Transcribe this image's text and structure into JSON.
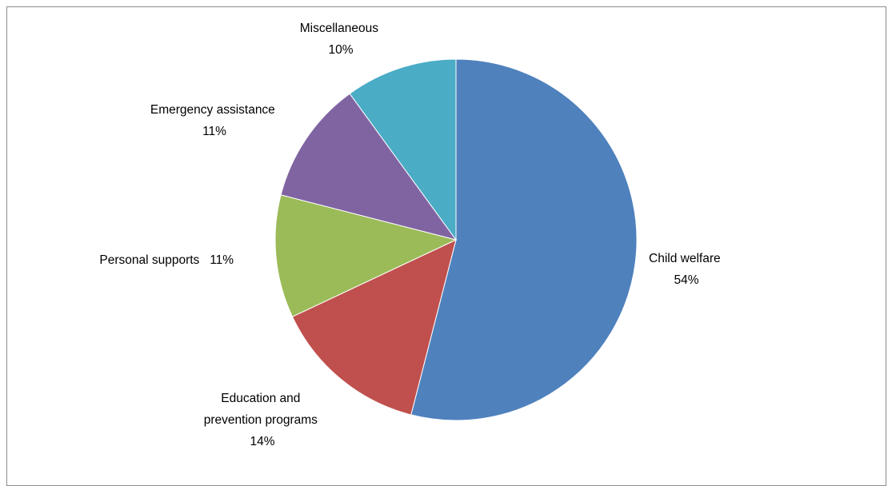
{
  "chart_data": {
    "type": "pie",
    "title": "",
    "slices": [
      {
        "name": "Child welfare",
        "value": 54,
        "label": "54%",
        "color": "#4f81bd"
      },
      {
        "name": "Education and prevention programs",
        "value": 14,
        "label": "14%",
        "color": "#c0504d"
      },
      {
        "name": "Personal supports",
        "value": 11,
        "label": "11%",
        "color": "#9bbb59"
      },
      {
        "name": "Emergency assistance",
        "value": 11,
        "label": "11%",
        "color": "#8064a2"
      },
      {
        "name": "Miscellaneous",
        "value": 10,
        "label": "10%",
        "color": "#4bacc6"
      }
    ],
    "label_lines": {
      "child_welfare": [
        "Child welfare",
        "54%"
      ],
      "education": [
        "Education and",
        "prevention programs",
        "14%"
      ],
      "personal_supports": [
        "Personal supports   11%"
      ],
      "emergency_assistance": [
        "Emergency assistance",
        "11%"
      ],
      "miscellaneous": [
        "Miscellaneous",
        "10%"
      ]
    },
    "start_angle": "12 o'clock",
    "direction": "clockwise",
    "legend": "none",
    "data_labels": "outside"
  }
}
